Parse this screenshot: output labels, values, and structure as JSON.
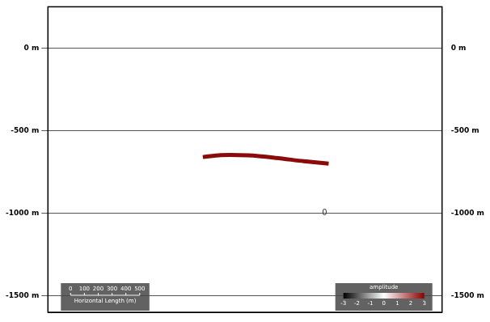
{
  "chart_data": {
    "type": "line",
    "x": [
      1120,
      1250,
      1450,
      1650,
      1850,
      2030
    ],
    "values": [
      -660,
      -648,
      -650,
      -665,
      -685,
      -700
    ],
    "color": "#8b0a0a",
    "xlim": [
      0,
      2850
    ],
    "ylim": [
      -1600,
      250
    ],
    "yticks": [
      {
        "value": -1500,
        "label": "-1500 m"
      },
      {
        "value": -1000,
        "label": "-1000 m"
      },
      {
        "value": -500,
        "label": "-500 m"
      },
      {
        "value": 0,
        "label": "0 m"
      }
    ],
    "y2lim": [
      -1600,
      250
    ],
    "y2ticks": [
      {
        "value": -1500,
        "label": "-1500 m"
      },
      {
        "value": -1000,
        "label": "-1000 m"
      },
      {
        "value": -500,
        "label": "-500 m"
      },
      {
        "value": 0,
        "label": "0 m"
      }
    ],
    "grid": true,
    "tick_labels": "y",
    "annotations": [
      {
        "text": "0",
        "x": 2000,
        "y": -1000
      }
    ],
    "scale_bar": {
      "title": "Horizontal Length (m)",
      "ticks": [
        0,
        100,
        200,
        300,
        400,
        500
      ]
    },
    "color_bar": {
      "title": "amplitude",
      "ticks": [
        -3,
        -2,
        -1,
        0,
        1,
        2,
        3
      ],
      "colors": [
        "#000000",
        "#ffffff",
        "#8b0000"
      ]
    }
  }
}
